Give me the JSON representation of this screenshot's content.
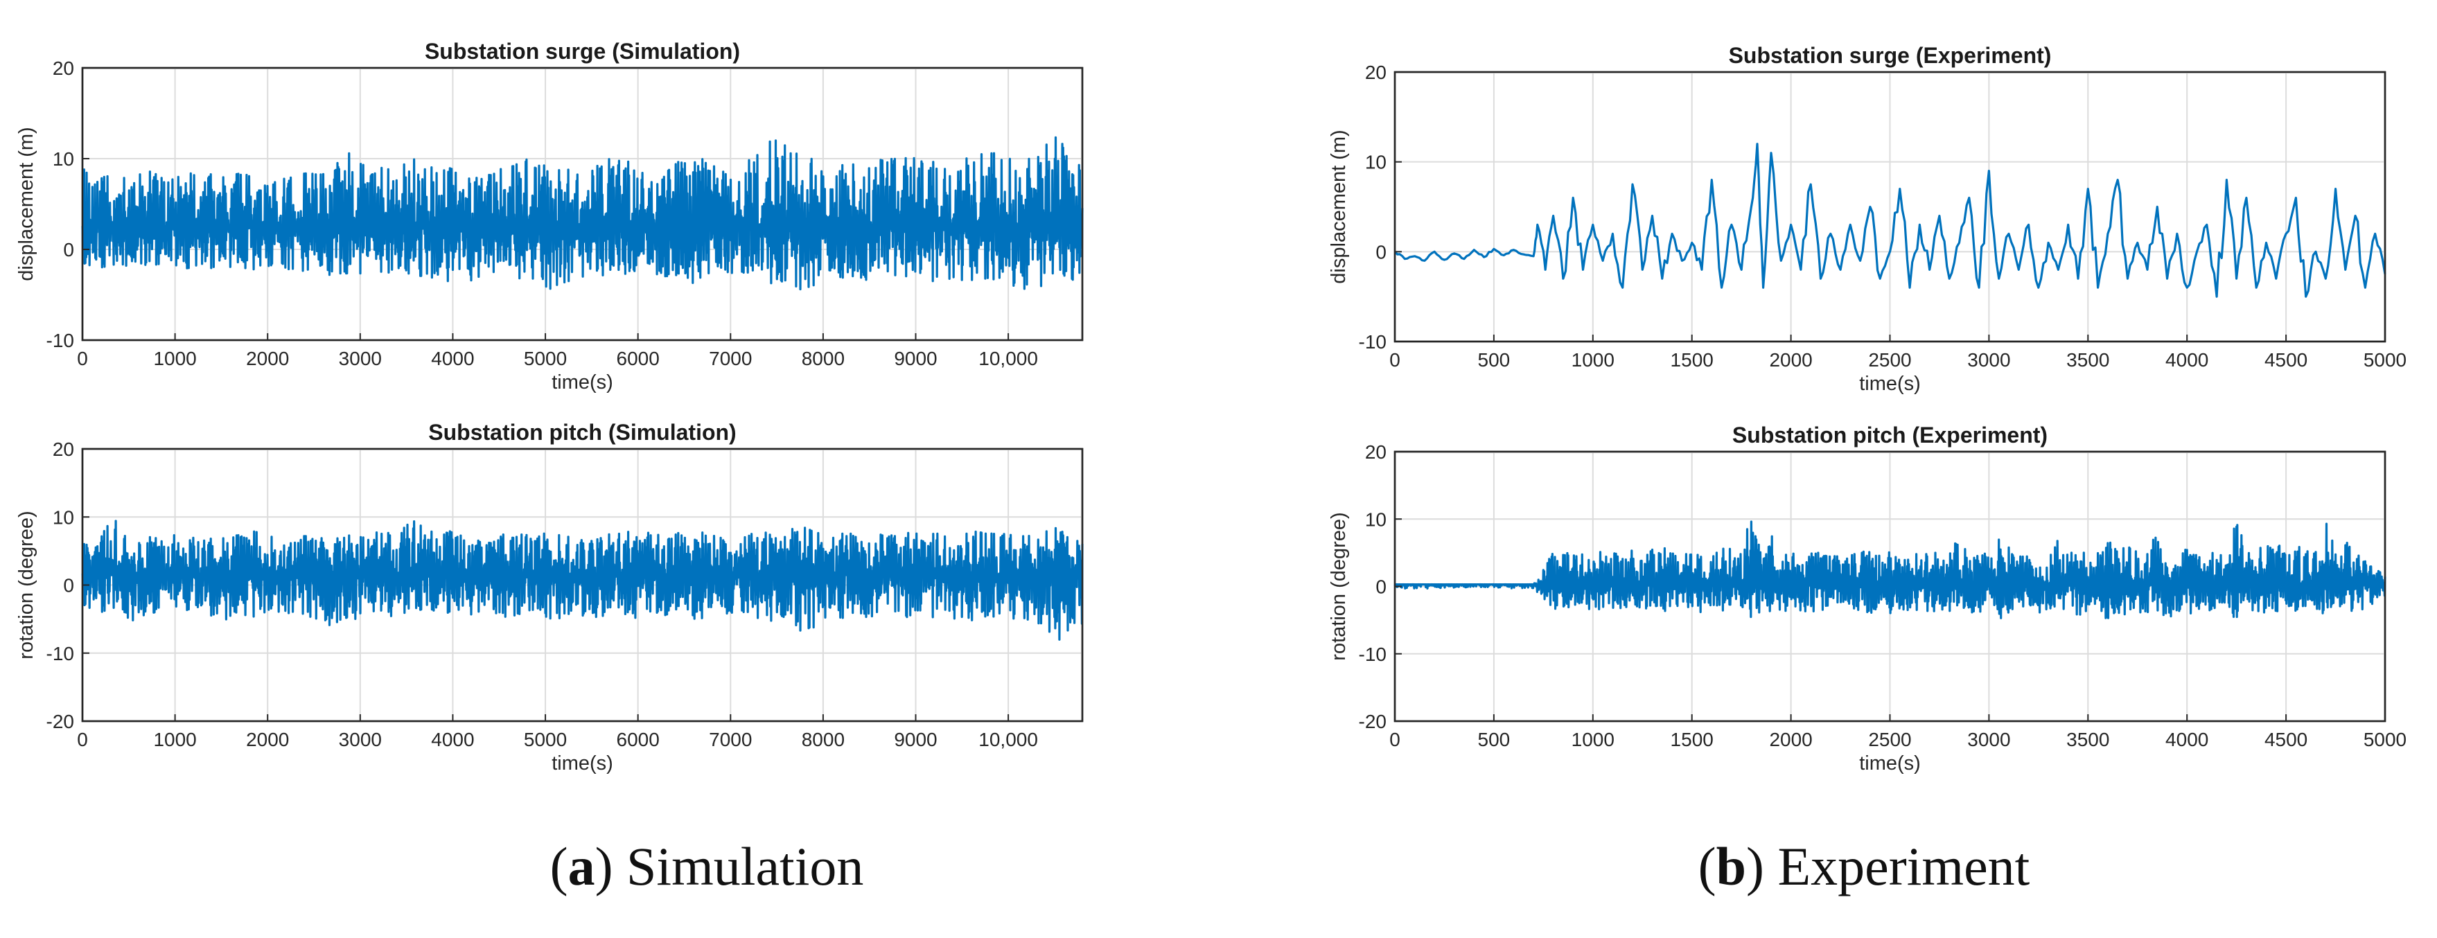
{
  "chart_data": [
    {
      "id": "sim-surge",
      "type": "line",
      "title": "Substation surge (Simulation)",
      "xlabel": "time(s)",
      "ylabel": "displacement (m)",
      "xlim": [
        0,
        10800
      ],
      "ylim": [
        -10,
        20
      ],
      "xticks": [
        0,
        1000,
        2000,
        3000,
        4000,
        5000,
        6000,
        7000,
        8000,
        9000,
        10000
      ],
      "xtick_labels": [
        "0",
        "1000",
        "2000",
        "3000",
        "4000",
        "5000",
        "6000",
        "7000",
        "8000",
        "9000",
        "10,000"
      ],
      "yticks": [
        -10,
        0,
        10,
        20
      ],
      "ytick_labels": [
        "-10",
        "0",
        "10",
        "20"
      ],
      "grid": true,
      "series": [
        {
          "color": "#0072BD",
          "x": [
            0,
            300,
            600,
            900,
            1200,
            1500,
            1800,
            2100,
            2400,
            2700,
            2850,
            3000,
            3300,
            3600,
            3900,
            4200,
            4500,
            4800,
            5100,
            5400,
            5700,
            6000,
            6300,
            6600,
            6900,
            7200,
            7500,
            7800,
            8100,
            8400,
            8700,
            9000,
            9300,
            9600,
            9900,
            10200,
            10500,
            10800
          ],
          "y_upper": [
            9,
            8.5,
            9,
            8.5,
            9,
            8,
            9,
            8.5,
            8.5,
            9,
            11,
            10,
            9,
            10,
            9,
            9,
            9,
            10,
            9,
            9,
            10,
            9.5,
            9,
            10.5,
            9,
            10,
            13,
            10.5,
            9,
            10,
            10,
            11,
            9,
            10.5,
            11,
            10,
            12.5,
            10
          ],
          "y_lower": [
            -2,
            -2,
            -2.5,
            -2,
            -2.5,
            -2,
            -2.5,
            -2,
            -2.5,
            -3,
            -3,
            -3,
            -3,
            -3.5,
            -4,
            -3.5,
            -3,
            -3.5,
            -4.5,
            -3,
            -3,
            -3,
            -3,
            -4,
            -3,
            -3,
            -4,
            -4.5,
            -3,
            -3.5,
            -3.5,
            -3,
            -4,
            -3.5,
            -3.5,
            -5,
            -4.5,
            -4
          ],
          "mean": 2.5
        }
      ]
    },
    {
      "id": "sim-pitch",
      "type": "line",
      "title": "Substation pitch (Simulation)",
      "xlabel": "time(s)",
      "ylabel": "rotation (degree)",
      "xlim": [
        0,
        10800
      ],
      "ylim": [
        -20,
        20
      ],
      "xticks": [
        0,
        1000,
        2000,
        3000,
        4000,
        5000,
        6000,
        7000,
        8000,
        9000,
        10000
      ],
      "xtick_labels": [
        "0",
        "1000",
        "2000",
        "3000",
        "4000",
        "5000",
        "6000",
        "7000",
        "8000",
        "9000",
        "10,000"
      ],
      "yticks": [
        -20,
        -10,
        0,
        10,
        20
      ],
      "ytick_labels": [
        "-20",
        "-10",
        "0",
        "10",
        "20"
      ],
      "grid": true,
      "series": [
        {
          "color": "#0072BD",
          "x": [
            0,
            300,
            600,
            900,
            1200,
            1500,
            1800,
            2100,
            2400,
            2700,
            3000,
            3300,
            3600,
            3900,
            4200,
            4500,
            4800,
            5100,
            5400,
            5700,
            6000,
            6300,
            6600,
            6900,
            7200,
            7500,
            7800,
            8100,
            8400,
            8700,
            9000,
            9300,
            9600,
            9900,
            10200,
            10500,
            10800
          ],
          "y_upper": [
            6,
            10.5,
            7,
            8,
            7,
            7,
            8.5,
            7,
            7.5,
            7,
            8,
            8,
            9.5,
            8,
            8,
            7.5,
            7.5,
            8,
            7,
            7.5,
            8,
            7.5,
            8,
            7.5,
            7.5,
            8,
            8.5,
            7.5,
            8,
            7.5,
            8,
            7.5,
            8,
            8,
            7.5,
            8.5,
            7
          ],
          "y_lower": [
            -4,
            -4,
            -6.5,
            -4,
            -4.5,
            -5,
            -5.5,
            -4,
            -4.5,
            -6.5,
            -5,
            -5,
            -5,
            -5,
            -4.5,
            -5,
            -4.5,
            -5,
            -4.5,
            -5,
            -5,
            -4.5,
            -5,
            -5,
            -5,
            -5.5,
            -7,
            -5,
            -5,
            -5,
            -5,
            -5,
            -5.5,
            -5,
            -6,
            -8.5,
            -6
          ],
          "mean": 1.5
        }
      ]
    },
    {
      "id": "exp-surge",
      "type": "line",
      "title": "Substation surge (Experiment)",
      "xlabel": "time(s)",
      "ylabel": "displacement (m)",
      "xlim": [
        0,
        5000
      ],
      "ylim": [
        -10,
        20
      ],
      "xticks": [
        0,
        500,
        1000,
        1500,
        2000,
        2500,
        3000,
        3500,
        4000,
        4500,
        5000
      ],
      "xtick_labels": [
        "0",
        "500",
        "1000",
        "1500",
        "2000",
        "2500",
        "3000",
        "3500",
        "4000",
        "4500",
        "5000"
      ],
      "yticks": [
        -10,
        0,
        10,
        20
      ],
      "ytick_labels": [
        "-10",
        "0",
        "10",
        "20"
      ],
      "grid": true,
      "series": [
        {
          "color": "#0072BD",
          "x": [
            0,
            50,
            100,
            150,
            200,
            250,
            300,
            350,
            400,
            450,
            500,
            550,
            600,
            650,
            700,
            720,
            760,
            800,
            850,
            900,
            950,
            1000,
            1050,
            1100,
            1150,
            1200,
            1250,
            1300,
            1350,
            1400,
            1450,
            1500,
            1550,
            1600,
            1650,
            1700,
            1750,
            1800,
            1830,
            1860,
            1900,
            1950,
            2000,
            2050,
            2100,
            2150,
            2200,
            2250,
            2300,
            2350,
            2400,
            2450,
            2500,
            2550,
            2600,
            2650,
            2700,
            2750,
            2800,
            2850,
            2900,
            2950,
            3000,
            3050,
            3100,
            3150,
            3200,
            3250,
            3300,
            3350,
            3400,
            3450,
            3500,
            3550,
            3600,
            3650,
            3700,
            3750,
            3800,
            3850,
            3900,
            3950,
            4000,
            4050,
            4100,
            4150,
            4200,
            4250,
            4300,
            4350,
            4400,
            4450,
            4500,
            4550,
            4600,
            4650,
            4700,
            4750,
            4800,
            4850,
            4900,
            4950,
            5000
          ],
          "y": [
            0,
            -0.8,
            -0.5,
            -1.0,
            0,
            -0.9,
            -0.2,
            -0.8,
            0.2,
            -0.6,
            0.3,
            -0.4,
            0.2,
            -0.3,
            -0.5,
            3,
            -2,
            4,
            -3,
            6,
            -2,
            3,
            -1,
            2,
            -4,
            7.5,
            -2,
            4,
            -3,
            2,
            -1,
            1,
            -2,
            8,
            -4,
            3,
            -2,
            5,
            12,
            -4,
            11,
            -1,
            3,
            -2,
            7.5,
            -3,
            2,
            -2,
            3,
            -1,
            5,
            -3,
            0,
            7,
            -4,
            3,
            -2,
            4,
            -3,
            1,
            6,
            -4,
            9,
            -3,
            2,
            -2,
            3,
            -4,
            1,
            -2,
            3,
            -3,
            7,
            -4,
            2,
            8,
            -3,
            1,
            -2,
            5,
            -3,
            2,
            -4,
            0,
            3,
            -5,
            8,
            -3,
            6,
            -4,
            1,
            -3,
            2,
            6,
            -5,
            0,
            -3,
            7,
            -2,
            4,
            -4,
            2,
            -2.5
          ]
        }
      ]
    },
    {
      "id": "exp-pitch",
      "type": "line",
      "title": "Substation pitch (Experiment)",
      "xlabel": "time(s)",
      "ylabel": "rotation (degree)",
      "xlim": [
        0,
        5000
      ],
      "ylim": [
        -20,
        20
      ],
      "xticks": [
        0,
        500,
        1000,
        1500,
        2000,
        2500,
        3000,
        3500,
        4000,
        4500,
        5000
      ],
      "xtick_labels": [
        "0",
        "500",
        "1000",
        "1500",
        "2000",
        "2500",
        "3000",
        "3500",
        "4000",
        "4500",
        "5000"
      ],
      "yticks": [
        -20,
        -10,
        0,
        10,
        20
      ],
      "ytick_labels": [
        "-20",
        "-10",
        "0",
        "10",
        "20"
      ],
      "grid": true,
      "series": [
        {
          "color": "#0072BD",
          "x": [
            0,
            700,
            760,
            800,
            850,
            900,
            950,
            1000,
            1050,
            1100,
            1150,
            1200,
            1250,
            1300,
            1350,
            1400,
            1450,
            1500,
            1550,
            1600,
            1650,
            1700,
            1750,
            1800,
            1850,
            1900,
            1950,
            2000,
            2050,
            2100,
            2150,
            2200,
            2250,
            2300,
            2350,
            2400,
            2450,
            2500,
            2550,
            2600,
            2650,
            2700,
            2750,
            2800,
            2850,
            2900,
            2950,
            3000,
            3050,
            3100,
            3150,
            3200,
            3250,
            3300,
            3350,
            3400,
            3450,
            3500,
            3550,
            3600,
            3650,
            3700,
            3750,
            3800,
            3850,
            3900,
            3950,
            4000,
            4050,
            4100,
            4150,
            4200,
            4250,
            4300,
            4350,
            4400,
            4450,
            4500,
            4550,
            4600,
            4650,
            4700,
            4750,
            4800,
            4850,
            4900,
            4950,
            5000
          ],
          "y_upper": [
            0.3,
            0.3,
            3,
            7,
            5,
            6,
            5,
            6,
            5,
            5.5,
            5,
            6,
            5,
            5.5,
            5.5,
            7,
            5,
            5.5,
            5,
            5,
            5.5,
            6.5,
            6,
            10.5,
            5,
            8,
            5,
            6.5,
            5,
            5,
            5,
            4.5,
            5,
            5,
            5,
            5.5,
            5,
            6,
            5,
            4.5,
            5,
            5,
            5,
            5.5,
            7.5,
            5,
            5,
            5,
            7.5,
            6,
            5,
            5.5,
            5,
            5,
            7,
            5,
            5.5,
            5,
            5,
            7,
            5.5,
            7,
            5,
            5,
            8.5,
            5,
            5,
            6,
            5,
            5,
            5.5,
            5,
            10,
            5.5,
            6,
            6,
            7,
            5,
            6,
            6,
            5.5,
            11,
            6,
            7.5,
            5,
            4,
            3.5,
            2
          ],
          "y_lower": [
            -0.3,
            -0.3,
            -2,
            -3.5,
            -3.5,
            -3.5,
            -3.5,
            -3.5,
            -3.5,
            -3.5,
            -3.5,
            -3.5,
            -3.5,
            -4,
            -4,
            -4,
            -3.5,
            -4,
            -4.5,
            -4,
            -3.5,
            -5,
            -5,
            -5.5,
            -3.5,
            -5,
            -3.5,
            -4,
            -4,
            -4,
            -4,
            -3,
            -3.5,
            -3.5,
            -3.5,
            -4,
            -3.5,
            -4,
            -3.5,
            -3.5,
            -3.5,
            -4,
            -3.5,
            -4,
            -4,
            -4,
            -4,
            -4.5,
            -5,
            -4,
            -3.5,
            -3.5,
            -4,
            -4,
            -4,
            -3.5,
            -4.5,
            -4,
            -4,
            -5,
            -4,
            -4.5,
            -4,
            -4,
            -5,
            -5.5,
            -4,
            -4,
            -4,
            -3.5,
            -4,
            -4,
            -5,
            -4,
            -4,
            -4,
            -4,
            -3.5,
            -4,
            -4,
            -4,
            -4.5,
            -4,
            -4,
            -4.5,
            -3,
            -2.5,
            -1.5
          ],
          "mean": 0.3
        }
      ]
    }
  ],
  "captions": {
    "a": {
      "letter": "a",
      "text": "Simulation"
    },
    "b": {
      "letter": "b",
      "text": "Experiment"
    }
  }
}
